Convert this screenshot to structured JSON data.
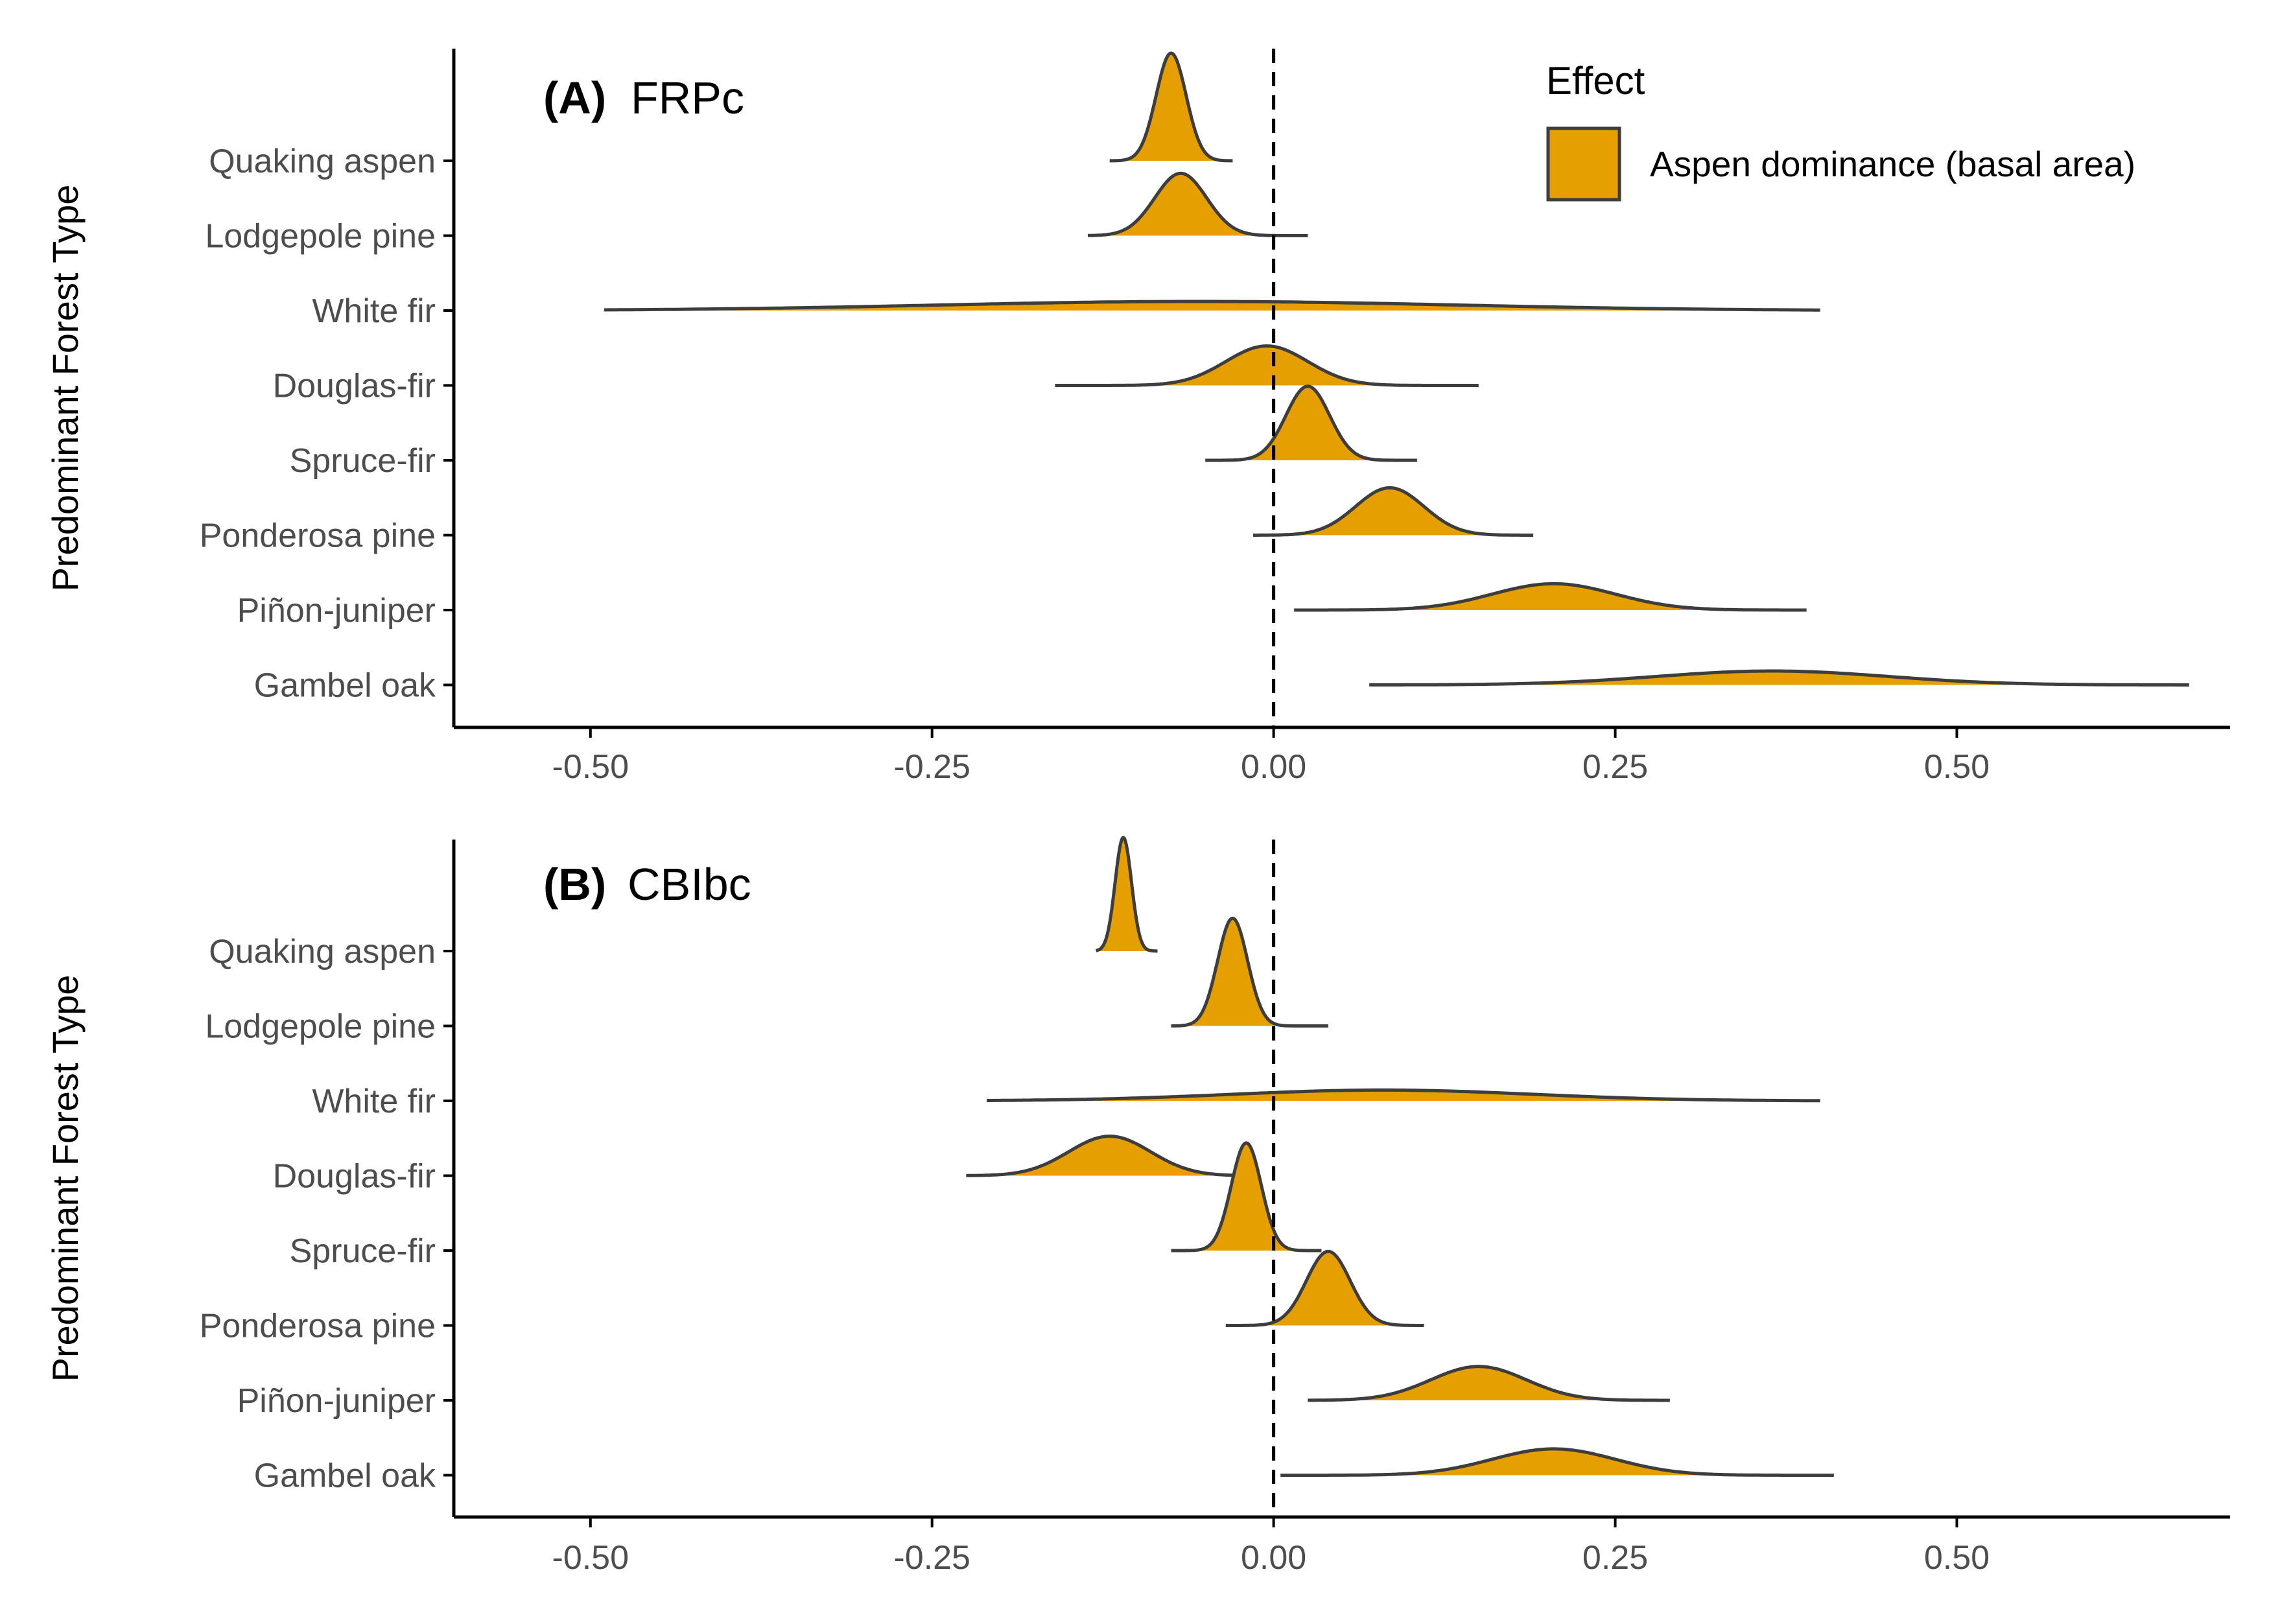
{
  "colors": {
    "fill": "#E69F00",
    "outline": "#3d3d3d",
    "axis": "#000000",
    "tick_text": "#4d4d4d"
  },
  "legend": {
    "title": "Effect",
    "label": "Aspen dominance (basal area)",
    "placement": "top-right"
  },
  "chart_data": [
    {
      "type": "ridgeline",
      "panel_tag": "(A)",
      "panel_name": "FRPc",
      "ylabel": "Predominant Forest Type",
      "xlabel": "",
      "xlim": [
        -0.6,
        0.7
      ],
      "xticks": [
        -0.5,
        -0.25,
        0.0,
        0.25,
        0.5
      ],
      "xtick_labels": [
        "-0.50",
        "-0.25",
        "0.00",
        "0.25",
        "0.50"
      ],
      "reference_line_x": 0.0,
      "categories": [
        "Quaking aspen",
        "Lodgepole pine",
        "White fir",
        "Douglas-fir",
        "Spruce-fir",
        "Ponderosa pine",
        "Piñon-juniper",
        "Gambel oak"
      ],
      "series": [
        {
          "category": "Quaking aspen",
          "mean": -0.075,
          "sd": 0.011,
          "range": [
            -0.12,
            -0.03
          ]
        },
        {
          "category": "Lodgepole pine",
          "mean": -0.068,
          "sd": 0.019,
          "range": [
            -0.136,
            0.025
          ]
        },
        {
          "category": "White fir",
          "mean": -0.055,
          "sd": 0.19,
          "range": [
            -0.49,
            0.4
          ]
        },
        {
          "category": "Douglas-fir",
          "mean": -0.005,
          "sd": 0.03,
          "range": [
            -0.16,
            0.15
          ]
        },
        {
          "category": "Spruce-fir",
          "mean": 0.025,
          "sd": 0.016,
          "range": [
            -0.05,
            0.105
          ]
        },
        {
          "category": "Ponderosa pine",
          "mean": 0.085,
          "sd": 0.025,
          "range": [
            -0.015,
            0.19
          ]
        },
        {
          "category": "Piñon-juniper",
          "mean": 0.205,
          "sd": 0.045,
          "range": [
            0.015,
            0.39
          ]
        },
        {
          "category": "Gambel oak",
          "mean": 0.365,
          "sd": 0.085,
          "range": [
            0.07,
            0.67
          ]
        }
      ]
    },
    {
      "type": "ridgeline",
      "panel_tag": "(B)",
      "panel_name": "CBIbc",
      "ylabel": "Predominant Forest Type",
      "xlabel": "",
      "xlim": [
        -0.6,
        0.7
      ],
      "xticks": [
        -0.5,
        -0.25,
        0.0,
        0.25,
        0.5
      ],
      "xtick_labels": [
        "-0.50",
        "-0.25",
        "0.00",
        "0.25",
        "0.50"
      ],
      "reference_line_x": 0.0,
      "categories": [
        "Quaking aspen",
        "Lodgepole pine",
        "White fir",
        "Douglas-fir",
        "Spruce-fir",
        "Ponderosa pine",
        "Piñon-juniper",
        "Gambel oak"
      ],
      "series": [
        {
          "category": "Quaking aspen",
          "mean": -0.11,
          "sd": 0.006,
          "range": [
            -0.13,
            -0.085
          ]
        },
        {
          "category": "Lodgepole pine",
          "mean": -0.03,
          "sd": 0.011,
          "range": [
            -0.075,
            0.04
          ]
        },
        {
          "category": "White fir",
          "mean": 0.08,
          "sd": 0.11,
          "range": [
            -0.21,
            0.4
          ]
        },
        {
          "category": "Douglas-fir",
          "mean": -0.12,
          "sd": 0.03,
          "range": [
            -0.225,
            -0.01
          ]
        },
        {
          "category": "Spruce-fir",
          "mean": -0.02,
          "sd": 0.011,
          "range": [
            -0.075,
            0.035
          ]
        },
        {
          "category": "Ponderosa pine",
          "mean": 0.04,
          "sd": 0.016,
          "range": [
            -0.035,
            0.11
          ]
        },
        {
          "category": "Piñon-juniper",
          "mean": 0.15,
          "sd": 0.035,
          "range": [
            0.025,
            0.29
          ]
        },
        {
          "category": "Gambel oak",
          "mean": 0.205,
          "sd": 0.045,
          "range": [
            0.005,
            0.41
          ]
        }
      ]
    }
  ]
}
